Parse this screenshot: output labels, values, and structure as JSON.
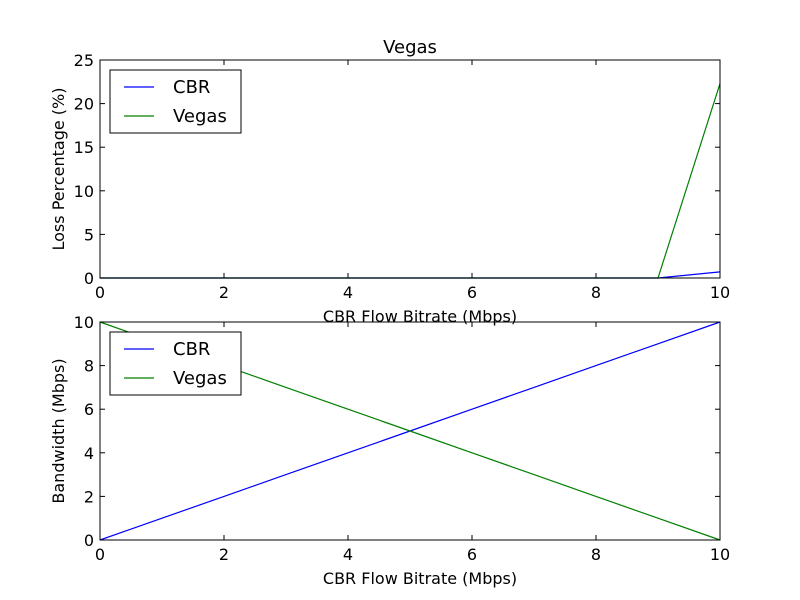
{
  "figure_title": "Vegas",
  "chart_data": [
    {
      "type": "line",
      "title": "Vegas",
      "xlabel": "CBR Flow Bitrate (Mbps)",
      "ylabel": "Loss Percentage (%)",
      "xlim": [
        0,
        10
      ],
      "ylim": [
        0,
        25
      ],
      "xticks": [
        0,
        2,
        4,
        6,
        8,
        10
      ],
      "yticks": [
        0,
        5,
        10,
        15,
        20,
        25
      ],
      "grid": false,
      "legend_position": "top-left",
      "series": [
        {
          "name": "CBR",
          "color": "#0000ff",
          "x": [
            0,
            1,
            2,
            3,
            4,
            5,
            6,
            7,
            8,
            9,
            10
          ],
          "y": [
            0,
            0,
            0,
            0,
            0,
            0,
            0,
            0,
            0,
            0,
            0.7
          ]
        },
        {
          "name": "Vegas",
          "color": "#008000",
          "x": [
            0,
            1,
            2,
            3,
            4,
            5,
            6,
            7,
            8,
            9,
            10
          ],
          "y": [
            0,
            0,
            0,
            0,
            0,
            0,
            0,
            0,
            0,
            0,
            22.3
          ]
        }
      ]
    },
    {
      "type": "line",
      "title": "",
      "xlabel": "CBR Flow Bitrate (Mbps)",
      "ylabel": "Bandwidth (Mbps)",
      "xlim": [
        0,
        10
      ],
      "ylim": [
        0,
        10
      ],
      "xticks": [
        0,
        2,
        4,
        6,
        8,
        10
      ],
      "yticks": [
        0,
        2,
        4,
        6,
        8,
        10
      ],
      "grid": false,
      "legend_position": "top-left",
      "series": [
        {
          "name": "CBR",
          "color": "#0000ff",
          "x": [
            0,
            1,
            2,
            3,
            4,
            5,
            6,
            7,
            8,
            9,
            10
          ],
          "y": [
            0,
            1,
            2,
            3,
            4,
            5,
            6,
            7,
            8,
            9,
            10
          ]
        },
        {
          "name": "Vegas",
          "color": "#008000",
          "x": [
            0,
            1,
            2,
            3,
            4,
            5,
            6,
            7,
            8,
            9,
            10
          ],
          "y": [
            10,
            9,
            8,
            7,
            6,
            5,
            4,
            3,
            2,
            1,
            0
          ]
        }
      ]
    }
  ]
}
